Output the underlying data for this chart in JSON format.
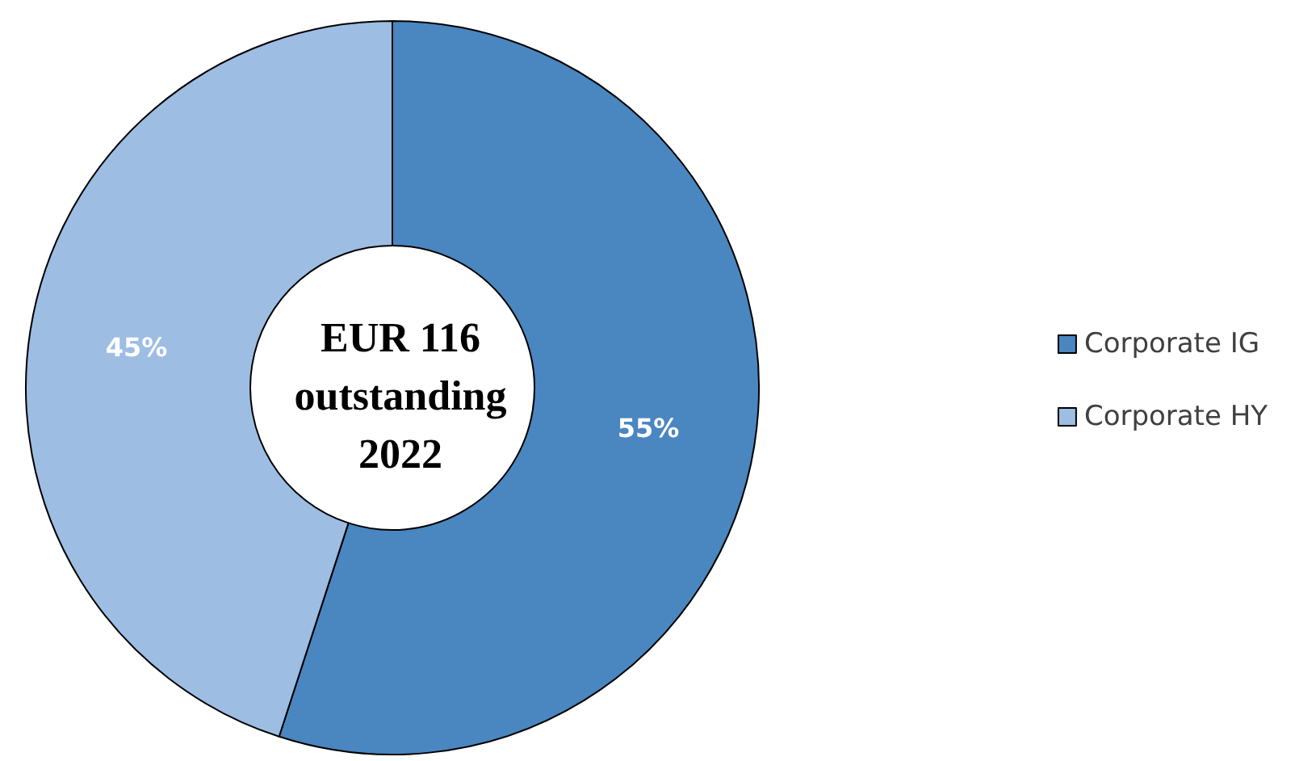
{
  "chart_data": {
    "type": "donut",
    "title": "EUR 116\noutstanding\n2022",
    "categories": [
      "Corporate IG",
      "Corporate HY"
    ],
    "values": [
      55,
      45
    ],
    "value_labels": [
      "55%",
      "45%"
    ],
    "colors": [
      "#4a86c0",
      "#9dbde3"
    ],
    "legend": "right"
  }
}
